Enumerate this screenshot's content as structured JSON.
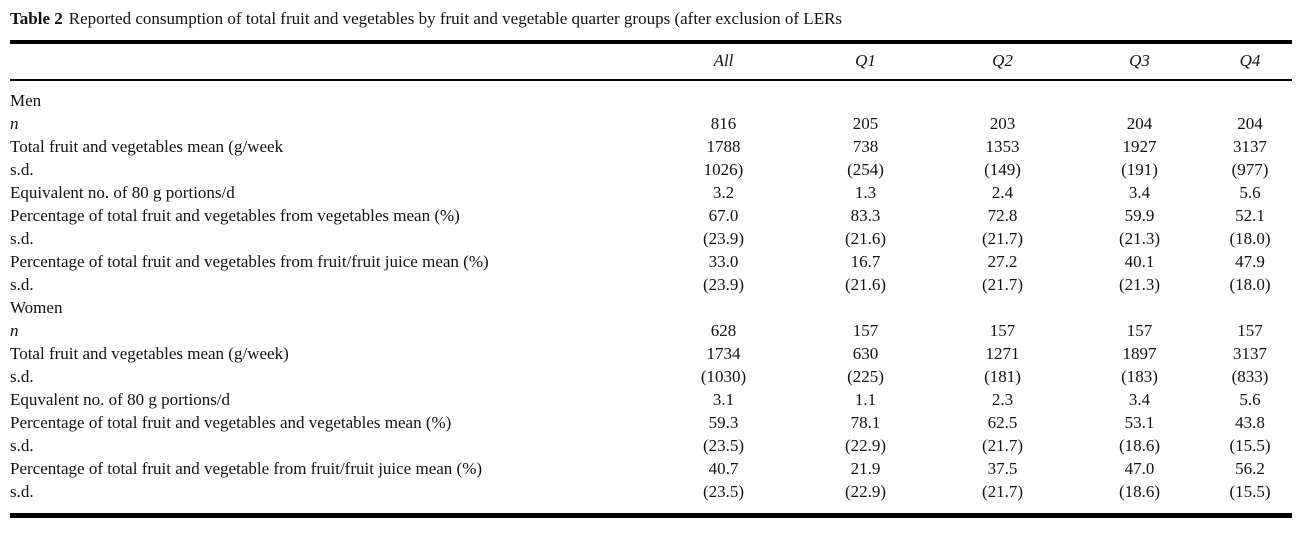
{
  "page": {
    "background": "#ffffff",
    "text_color": "#111111",
    "rule_color": "#000000"
  },
  "caption": {
    "label": "Table 2",
    "text": "Reported consumption of total fruit and vegetables by fruit and vegetable quarter groups (after exclusion of LERs"
  },
  "table": {
    "column_headers": [
      "All",
      "Q1",
      "Q2",
      "Q3",
      "Q4"
    ],
    "rows": [
      {
        "label": "Men",
        "style": "section",
        "values": [
          "",
          "",
          "",
          "",
          ""
        ]
      },
      {
        "label": "n",
        "style": "italic",
        "values": [
          "816",
          "205",
          "203",
          "204",
          "204"
        ]
      },
      {
        "label": "Total fruit and vegetables mean (g/week",
        "style": "normal",
        "values": [
          "1788",
          "738",
          "1353",
          "1927",
          "3137"
        ]
      },
      {
        "label": "s.d.",
        "style": "normal",
        "values": [
          "1026)",
          "(254)",
          "(149)",
          "(191)",
          "(977)"
        ]
      },
      {
        "label": "Equivalent no. of 80 g portions/d",
        "style": "normal",
        "values": [
          "3.2",
          "1.3",
          "2.4",
          "3.4",
          "5.6"
        ]
      },
      {
        "label": "Percentage of total fruit and vegetables from vegetables mean (%)",
        "style": "normal",
        "values": [
          "67.0",
          "83.3",
          "72.8",
          "59.9",
          "52.1"
        ]
      },
      {
        "label": "s.d.",
        "style": "normal",
        "values": [
          "(23.9)",
          "(21.6)",
          "(21.7)",
          "(21.3)",
          "(18.0)"
        ]
      },
      {
        "label": "Percentage of total fruit and vegetables from fruit/fruit juice mean (%)",
        "style": "normal",
        "values": [
          "33.0",
          "16.7",
          "27.2",
          "40.1",
          "47.9"
        ]
      },
      {
        "label": "s.d.",
        "style": "normal",
        "values": [
          "(23.9)",
          "(21.6)",
          "(21.7)",
          "(21.3)",
          "(18.0)"
        ]
      },
      {
        "label": "Women",
        "style": "section",
        "values": [
          "",
          "",
          "",
          "",
          ""
        ]
      },
      {
        "label": "n",
        "style": "italic",
        "values": [
          "628",
          "157",
          "157",
          "157",
          "157"
        ]
      },
      {
        "label": "Total fruit and vegetables mean (g/week)",
        "style": "normal",
        "values": [
          "1734",
          "630",
          "1271",
          "1897",
          "3137"
        ]
      },
      {
        "label": "s.d.",
        "style": "normal",
        "values": [
          "(1030)",
          "(225)",
          "(181)",
          "(183)",
          "(833)"
        ]
      },
      {
        "label": "Equvalent no. of 80 g portions/d",
        "style": "normal",
        "values": [
          "3.1",
          "1.1",
          "2.3",
          "3.4",
          "5.6"
        ]
      },
      {
        "label": "Percentage of total fruit and vegetables and vegetables mean (%)",
        "style": "normal",
        "values": [
          "59.3",
          "78.1",
          "62.5",
          "53.1",
          "43.8"
        ]
      },
      {
        "label": "s.d.",
        "style": "normal",
        "values": [
          "(23.5)",
          "(22.9)",
          "(21.7)",
          "(18.6)",
          "(15.5)"
        ]
      },
      {
        "label": "Percentage of total fruit and vegetable from fruit/fruit juice mean (%)",
        "style": "normal",
        "values": [
          "40.7",
          "21.9",
          "37.5",
          "47.0",
          "56.2"
        ]
      },
      {
        "label": "s.d.",
        "style": "normal",
        "values": [
          "(23.5)",
          "(22.9)",
          "(21.7)",
          "(18.6)",
          "(15.5)"
        ]
      }
    ]
  }
}
